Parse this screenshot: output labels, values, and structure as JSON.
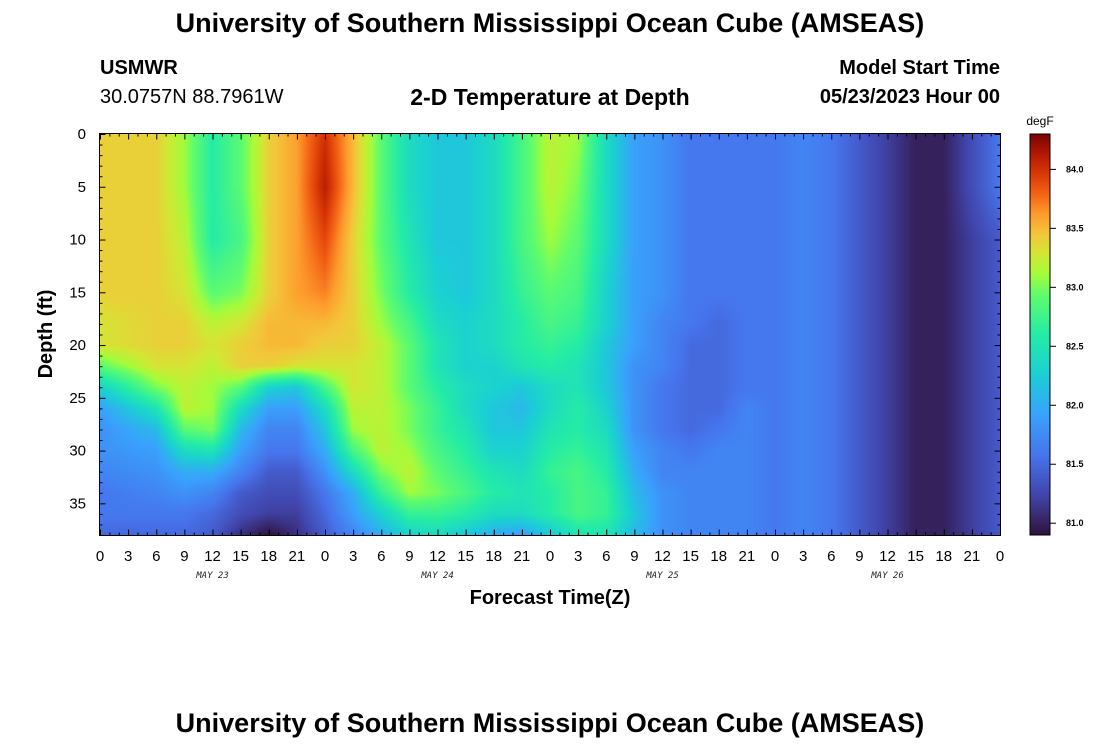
{
  "header": {
    "title": "University of Southern Mississippi Ocean Cube (AMSEAS)",
    "station": "USMWR",
    "coords": "30.0757N  88.7961W",
    "subtitle": "2-D Temperature at Depth",
    "model_start_label": "Model Start Time",
    "model_start_value": "05/23/2023 Hour 00"
  },
  "footer": {
    "title": "University of Southern Mississippi Ocean Cube (AMSEAS)"
  },
  "chart_data": {
    "type": "heatmap",
    "title": "2-D Temperature at Depth",
    "xlabel": "Forecast Time(Z)",
    "ylabel": "Depth (ft)",
    "x_tick_labels": [
      "0",
      "3",
      "6",
      "9",
      "12",
      "15",
      "18",
      "21",
      "0",
      "3",
      "6",
      "9",
      "12",
      "15",
      "18",
      "21",
      "0",
      "3",
      "6",
      "9",
      "12",
      "15",
      "18",
      "21",
      "0",
      "3",
      "6",
      "9",
      "12",
      "15",
      "18",
      "21",
      "0"
    ],
    "x_range_hours": [
      0,
      96
    ],
    "day_labels": [
      {
        "label": "MAY 23",
        "hour": 12
      },
      {
        "label": "MAY 24",
        "hour": 36
      },
      {
        "label": "MAY 25",
        "hour": 60
      },
      {
        "label": "MAY 26",
        "hour": 84
      }
    ],
    "y_ticks": [
      0,
      5,
      10,
      15,
      20,
      25,
      30,
      35
    ],
    "y_range_ft": [
      0,
      38
    ],
    "y_inverted": true,
    "colorbar": {
      "unit": "degF",
      "ticks": [
        84.0,
        83.5,
        83.0,
        82.5,
        82.0,
        81.5,
        81.0
      ],
      "range": [
        80.9,
        84.3
      ]
    },
    "depths_ft": [
      0,
      5,
      10,
      15,
      18,
      20,
      22,
      24,
      26,
      28,
      30,
      32,
      34,
      36,
      38
    ],
    "hours": [
      0,
      6,
      9,
      12,
      15,
      18,
      21,
      24,
      27,
      30,
      33,
      36,
      39,
      42,
      45,
      48,
      51,
      54,
      57,
      60,
      63,
      66,
      69,
      72,
      75,
      78,
      81,
      84,
      87,
      90,
      93,
      96
    ],
    "temperature_degF": [
      [
        83.4,
        83.4,
        83.1,
        82.6,
        82.9,
        83.4,
        83.6,
        84.0,
        83.5,
        82.9,
        82.4,
        82.2,
        82.2,
        82.4,
        82.8,
        83.2,
        83.1,
        82.4,
        81.9,
        81.8,
        81.6,
        81.6,
        81.6,
        81.6,
        81.7,
        81.6,
        81.4,
        81.2,
        81.0,
        81.0,
        81.3,
        81.6
      ],
      [
        83.4,
        83.4,
        83.1,
        82.6,
        82.9,
        83.4,
        83.6,
        84.1,
        83.5,
        82.9,
        82.4,
        82.2,
        82.2,
        82.4,
        82.8,
        83.2,
        83.0,
        82.4,
        81.9,
        81.8,
        81.6,
        81.6,
        81.6,
        81.6,
        81.7,
        81.6,
        81.4,
        81.2,
        81.0,
        81.0,
        81.3,
        81.6
      ],
      [
        83.4,
        83.4,
        83.2,
        82.6,
        82.8,
        83.4,
        83.6,
        83.9,
        83.4,
        82.9,
        82.5,
        82.2,
        82.2,
        82.4,
        82.8,
        83.1,
        82.9,
        82.4,
        81.9,
        81.8,
        81.6,
        81.6,
        81.6,
        81.6,
        81.7,
        81.6,
        81.4,
        81.2,
        81.0,
        81.0,
        81.2,
        81.4
      ],
      [
        83.4,
        83.4,
        83.3,
        82.9,
        83.0,
        83.4,
        83.6,
        83.7,
        83.4,
        83.0,
        82.6,
        82.3,
        82.2,
        82.4,
        82.7,
        82.9,
        82.8,
        82.3,
        81.9,
        81.8,
        81.6,
        81.6,
        81.6,
        81.6,
        81.7,
        81.6,
        81.4,
        81.2,
        81.0,
        81.0,
        81.2,
        81.4
      ],
      [
        83.3,
        83.4,
        83.4,
        83.2,
        83.3,
        83.5,
        83.5,
        83.5,
        83.4,
        83.1,
        82.8,
        82.4,
        82.3,
        82.4,
        82.6,
        82.8,
        82.7,
        82.3,
        81.9,
        81.7,
        81.6,
        81.5,
        81.6,
        81.6,
        81.7,
        81.6,
        81.4,
        81.2,
        81.0,
        81.0,
        81.2,
        81.4
      ],
      [
        83.3,
        83.4,
        83.4,
        83.3,
        83.4,
        83.5,
        83.5,
        83.4,
        83.4,
        83.2,
        82.9,
        82.5,
        82.3,
        82.4,
        82.6,
        82.7,
        82.6,
        82.2,
        81.9,
        81.7,
        81.5,
        81.5,
        81.6,
        81.6,
        81.7,
        81.6,
        81.4,
        81.2,
        81.0,
        81.0,
        81.2,
        81.4
      ],
      [
        82.9,
        83.3,
        83.3,
        83.2,
        83.4,
        83.4,
        83.3,
        83.3,
        83.3,
        83.2,
        82.9,
        82.5,
        82.3,
        82.3,
        82.5,
        82.6,
        82.5,
        82.2,
        81.8,
        81.7,
        81.5,
        81.5,
        81.6,
        81.6,
        81.7,
        81.6,
        81.4,
        81.2,
        81.0,
        81.0,
        81.2,
        81.4
      ],
      [
        82.3,
        83.0,
        83.2,
        83.1,
        82.9,
        82.3,
        82.2,
        82.8,
        83.3,
        83.2,
        82.9,
        82.6,
        82.4,
        82.3,
        82.2,
        82.4,
        82.5,
        82.2,
        81.8,
        81.6,
        81.5,
        81.5,
        81.6,
        81.6,
        81.7,
        81.6,
        81.4,
        81.2,
        81.0,
        81.0,
        81.2,
        81.4
      ],
      [
        81.9,
        82.5,
        83.2,
        83.1,
        82.4,
        81.9,
        81.9,
        82.4,
        83.2,
        83.2,
        83.0,
        82.7,
        82.4,
        82.2,
        82.1,
        82.4,
        82.6,
        82.3,
        81.8,
        81.6,
        81.5,
        81.5,
        81.7,
        81.6,
        81.7,
        81.6,
        81.4,
        81.2,
        81.0,
        81.0,
        81.2,
        81.4
      ],
      [
        81.8,
        82.1,
        82.9,
        83.0,
        82.1,
        81.7,
        81.7,
        82.2,
        83.1,
        83.2,
        83.0,
        82.7,
        82.5,
        82.2,
        82.2,
        82.5,
        82.6,
        82.4,
        81.8,
        81.6,
        81.5,
        81.6,
        81.7,
        81.6,
        81.7,
        81.6,
        81.4,
        81.2,
        81.0,
        81.0,
        81.2,
        81.4
      ],
      [
        81.8,
        81.9,
        82.4,
        82.5,
        81.9,
        81.6,
        81.6,
        82.0,
        82.8,
        83.2,
        83.1,
        82.8,
        82.6,
        82.3,
        82.3,
        82.6,
        82.7,
        82.5,
        81.9,
        81.7,
        81.6,
        81.7,
        81.7,
        81.6,
        81.7,
        81.6,
        81.4,
        81.2,
        81.0,
        81.0,
        81.2,
        81.4
      ],
      [
        81.7,
        81.8,
        82.0,
        82.0,
        81.7,
        81.4,
        81.4,
        81.8,
        82.4,
        83.0,
        83.2,
        82.9,
        82.7,
        82.5,
        82.4,
        82.7,
        82.8,
        82.6,
        82.0,
        81.7,
        81.7,
        81.7,
        81.7,
        81.6,
        81.7,
        81.6,
        81.4,
        81.2,
        81.0,
        81.0,
        81.2,
        81.4
      ],
      [
        81.6,
        81.7,
        81.8,
        81.7,
        81.4,
        81.3,
        81.3,
        81.6,
        82.0,
        82.7,
        83.1,
        83.0,
        82.8,
        82.6,
        82.5,
        82.6,
        82.8,
        82.7,
        82.1,
        81.8,
        81.7,
        81.7,
        81.7,
        81.6,
        81.7,
        81.6,
        81.4,
        81.2,
        81.0,
        81.0,
        81.2,
        81.4
      ],
      [
        81.6,
        81.6,
        81.6,
        81.5,
        81.3,
        81.2,
        81.2,
        81.5,
        81.9,
        82.3,
        82.7,
        82.7,
        82.6,
        82.4,
        82.4,
        82.6,
        82.8,
        82.7,
        82.2,
        81.8,
        81.7,
        81.7,
        81.7,
        81.6,
        81.7,
        81.6,
        81.4,
        81.2,
        81.0,
        81.0,
        81.2,
        81.4
      ],
      [
        81.5,
        81.5,
        81.5,
        81.4,
        81.1,
        80.9,
        81.1,
        81.4,
        81.7,
        82.0,
        82.3,
        82.4,
        82.2,
        82.0,
        81.9,
        82.2,
        82.5,
        82.5,
        82.1,
        81.8,
        81.7,
        81.7,
        81.7,
        81.6,
        81.7,
        81.6,
        81.4,
        81.2,
        81.0,
        81.0,
        81.2,
        81.4
      ]
    ]
  }
}
